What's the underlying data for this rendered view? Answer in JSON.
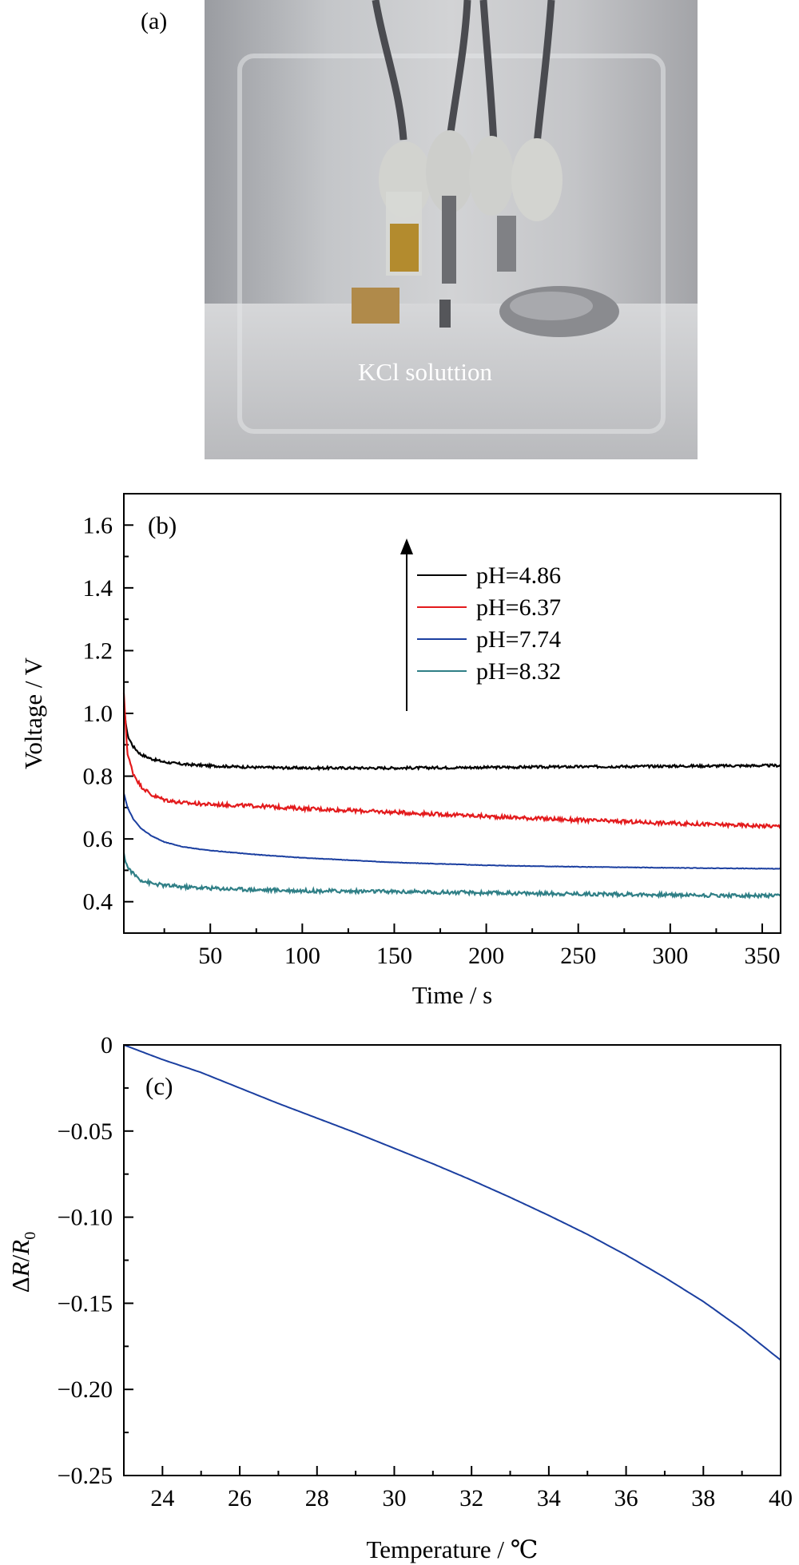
{
  "photo": {
    "label": "(a)",
    "caption": "KCl soluttion"
  },
  "chart_data": [
    {
      "type": "line",
      "panel_label": "(b)",
      "xlabel": "Time / s",
      "ylabel": "Voltage / V",
      "xlim": [
        3,
        360
      ],
      "ylim": [
        0.3,
        1.7
      ],
      "xticks": [
        50,
        100,
        150,
        200,
        250,
        300,
        350
      ],
      "yticks": [
        0.4,
        0.6,
        0.8,
        1.0,
        1.2,
        1.4,
        1.6
      ],
      "ytick_labels": [
        "0.4",
        "0.6",
        "0.8",
        "1.0",
        "1.2",
        "1.4",
        "1.6"
      ],
      "legend_position": "top-right",
      "legend_arrow": "up",
      "grid": false,
      "series": [
        {
          "name": "pH=4.86",
          "color": "#000000",
          "noise": 0.004,
          "x": [
            3,
            5,
            8,
            12,
            18,
            25,
            35,
            50,
            75,
            100,
            150,
            200,
            250,
            300,
            360
          ],
          "y": [
            1.02,
            0.93,
            0.895,
            0.87,
            0.855,
            0.845,
            0.838,
            0.833,
            0.828,
            0.826,
            0.826,
            0.828,
            0.83,
            0.832,
            0.834
          ]
        },
        {
          "name": "pH=6.37",
          "color": "#e31a1c",
          "noise": 0.006,
          "x": [
            3,
            5,
            8,
            12,
            18,
            25,
            35,
            50,
            75,
            100,
            150,
            200,
            250,
            300,
            360
          ],
          "y": [
            1.06,
            0.87,
            0.81,
            0.77,
            0.74,
            0.725,
            0.715,
            0.71,
            0.705,
            0.697,
            0.685,
            0.672,
            0.66,
            0.65,
            0.64
          ]
        },
        {
          "name": "pH=7.74",
          "color": "#1b3fa0",
          "noise": 0.0008,
          "x": [
            3,
            5,
            8,
            12,
            18,
            25,
            35,
            50,
            75,
            100,
            150,
            200,
            250,
            300,
            360
          ],
          "y": [
            0.745,
            0.7,
            0.665,
            0.635,
            0.61,
            0.59,
            0.575,
            0.563,
            0.55,
            0.54,
            0.525,
            0.516,
            0.511,
            0.508,
            0.505
          ]
        },
        {
          "name": "pH=8.32",
          "color": "#2f7f86",
          "noise": 0.006,
          "x": [
            3,
            5,
            8,
            12,
            18,
            25,
            35,
            50,
            75,
            100,
            150,
            200,
            250,
            300,
            360
          ],
          "y": [
            0.55,
            0.51,
            0.49,
            0.47,
            0.458,
            0.452,
            0.447,
            0.443,
            0.438,
            0.435,
            0.432,
            0.428,
            0.425,
            0.422,
            0.418
          ]
        }
      ]
    },
    {
      "type": "line",
      "panel_label": "(c)",
      "xlabel": "Temperature / ℃",
      "ylabel_prefix": "Δ",
      "ylabel_R": "R",
      "ylabel_slash": "/",
      "ylabel_R0": "R",
      "ylabel_sub": "0",
      "xlim": [
        23,
        40
      ],
      "ylim": [
        -0.25,
        0
      ],
      "xticks": [
        24,
        26,
        28,
        30,
        32,
        34,
        36,
        38,
        40
      ],
      "yticks": [
        -0.25,
        -0.2,
        -0.15,
        -0.1,
        -0.05,
        0
      ],
      "ytick_labels": [
        "−0.25",
        "−0.20",
        "−0.15",
        "−0.10",
        "−0.05",
        "0"
      ],
      "grid": false,
      "series": [
        {
          "color": "#1b3fa0",
          "x": [
            23,
            24,
            25,
            26,
            27,
            28,
            29,
            30,
            31,
            32,
            33,
            34,
            35,
            36,
            37,
            38,
            39,
            40
          ],
          "y": [
            0,
            -0.0085,
            -0.016,
            -0.025,
            -0.034,
            -0.0425,
            -0.051,
            -0.06,
            -0.069,
            -0.0785,
            -0.0885,
            -0.099,
            -0.11,
            -0.122,
            -0.135,
            -0.149,
            -0.165,
            -0.183
          ]
        }
      ]
    }
  ]
}
